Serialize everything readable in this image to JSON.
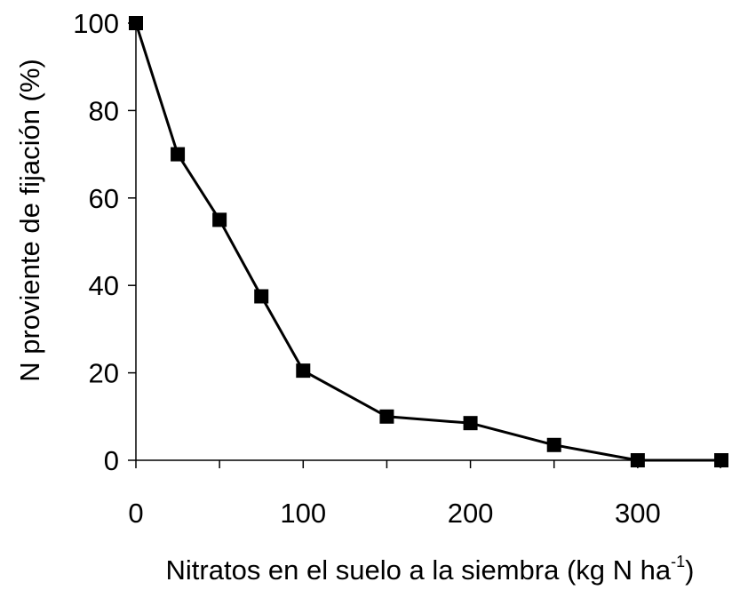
{
  "chart_data": {
    "type": "line",
    "title": "",
    "xlabel": "Nitratos en el suelo a la siembra (kg N ha",
    "xlabel_superscript": "-1",
    "xlabel_suffix": ")",
    "ylabel": "N proviente de fijación (%)",
    "xlim": [
      0,
      350
    ],
    "ylim": [
      0,
      100
    ],
    "x_ticks": [
      0,
      100,
      200,
      300
    ],
    "x_minor_ticks": [
      50,
      150,
      250,
      350
    ],
    "y_ticks": [
      0,
      20,
      40,
      60,
      80,
      100
    ],
    "grid": false,
    "legend": "none",
    "marker": "square",
    "color": "#000000",
    "series": [
      {
        "x": [
          0,
          25,
          50,
          75,
          100,
          150,
          200,
          250,
          300,
          350
        ],
        "y": [
          100,
          70,
          55,
          37.5,
          20.5,
          10,
          8.5,
          3.5,
          0,
          0
        ]
      }
    ]
  }
}
